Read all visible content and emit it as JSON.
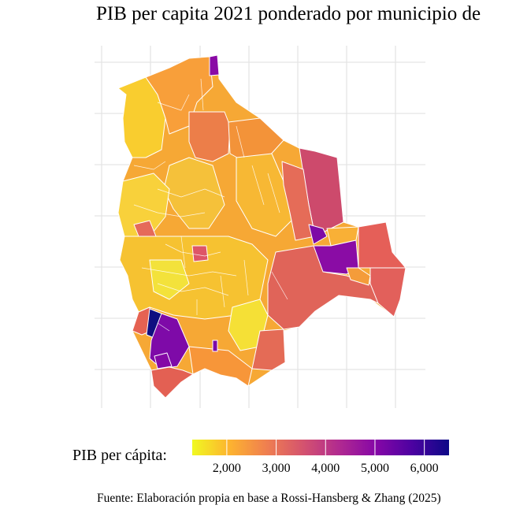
{
  "title": "PIB per capita 2021 ponderado por municipio de",
  "legend": {
    "label": "PIB per cápita:",
    "min": 1300,
    "max": 6500,
    "ticks": [
      {
        "value": 2000,
        "label": "2,000"
      },
      {
        "value": 3000,
        "label": "3,000"
      },
      {
        "value": 4000,
        "label": "4,000"
      },
      {
        "value": 5000,
        "label": "5,000"
      },
      {
        "value": 6000,
        "label": "6,000"
      }
    ],
    "palette": [
      "#f0f921",
      "#fdb42f",
      "#f0804f",
      "#d5546e",
      "#b12a90",
      "#8607a7",
      "#4c02a1",
      "#0d0887"
    ]
  },
  "caption": "Fuente: Elaboración propia en base a Rossi-Hansberg & Zhang (2025)",
  "regions": [
    {
      "name": "north-tip",
      "value": 5600
    },
    {
      "name": "north-west",
      "value": 2300
    },
    {
      "name": "north-central",
      "value": 2800
    },
    {
      "name": "central-orange",
      "value": 3300
    },
    {
      "name": "beni-east",
      "value": 2700
    },
    {
      "name": "beni-south",
      "value": 2500
    },
    {
      "name": "santa-cruz-north",
      "value": 4300
    },
    {
      "name": "santa-cruz-purple",
      "value": 5200
    },
    {
      "name": "santa-cruz-east",
      "value": 3900
    },
    {
      "name": "santa-cruz-south",
      "value": 3700
    },
    {
      "name": "altiplano-west",
      "value": 2200
    },
    {
      "name": "altiplano-central",
      "value": 2000
    },
    {
      "name": "lapaz-red",
      "value": 3900
    },
    {
      "name": "potosi-navy",
      "value": 6400
    },
    {
      "name": "potosi-purple",
      "value": 5300
    },
    {
      "name": "potosi-south-red",
      "value": 3800
    },
    {
      "name": "tarija",
      "value": 3600
    },
    {
      "name": "chuquisaca",
      "value": 2400
    }
  ]
}
